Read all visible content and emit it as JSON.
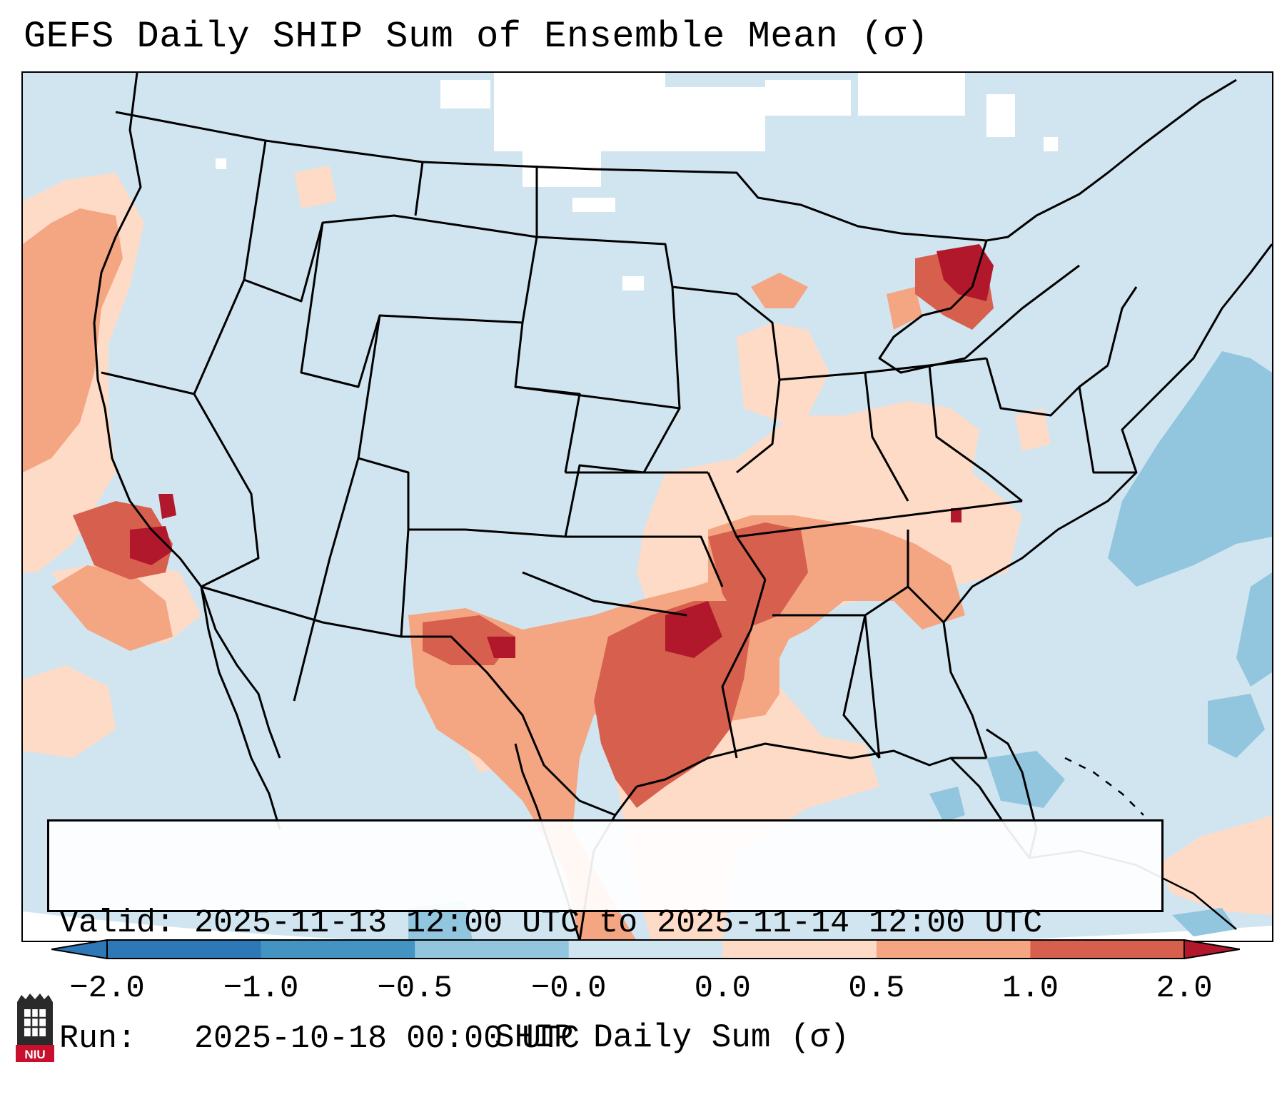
{
  "title": "GEFS Daily SHIP Sum of Ensemble Mean (σ)",
  "info": {
    "valid_line": "Valid: 2025-11-13 12:00 UTC to 2025-11-14 12:00 UTC",
    "run_line": "Run:   2025-10-18 00:00 UTC"
  },
  "colorbar": {
    "label": "SHIP Daily Sum (σ)",
    "ticks": [
      "−2.0",
      "−1.0",
      "−0.5",
      "−0.0",
      "0.0",
      "0.5",
      "1.0",
      "2.0"
    ],
    "bin_colors": [
      "#2f78b8",
      "#4393c3",
      "#92c5de",
      "#d1e5f0",
      "#fddbc7",
      "#f4a582",
      "#d6604d",
      "#b2182b"
    ],
    "extend": "both"
  },
  "map": {
    "projection": "Lambert Conformal, CONUS",
    "background_color": "#d1e5f0",
    "outline_color": "#000000"
  },
  "logo": {
    "text": "NIU"
  }
}
